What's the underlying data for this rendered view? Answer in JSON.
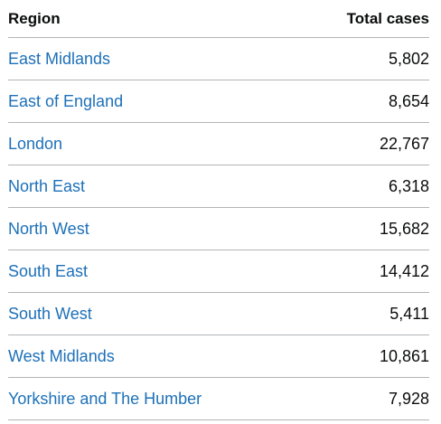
{
  "table": {
    "headers": {
      "region": "Region",
      "total_cases": "Total cases"
    },
    "rows": [
      {
        "region": "East Midlands",
        "total_cases": "5,802"
      },
      {
        "region": "East of England",
        "total_cases": "8,654"
      },
      {
        "region": "London",
        "total_cases": "22,767"
      },
      {
        "region": "North East",
        "total_cases": "6,318"
      },
      {
        "region": "North West",
        "total_cases": "15,682"
      },
      {
        "region": "South East",
        "total_cases": "14,412"
      },
      {
        "region": "South West",
        "total_cases": "5,411"
      },
      {
        "region": "West Midlands",
        "total_cases": "10,861"
      },
      {
        "region": "Yorkshire and The Humber",
        "total_cases": "7,928"
      }
    ]
  },
  "colors": {
    "link": "#1d70b8",
    "text": "#0b0c0c",
    "border": "#b1b4b6"
  }
}
